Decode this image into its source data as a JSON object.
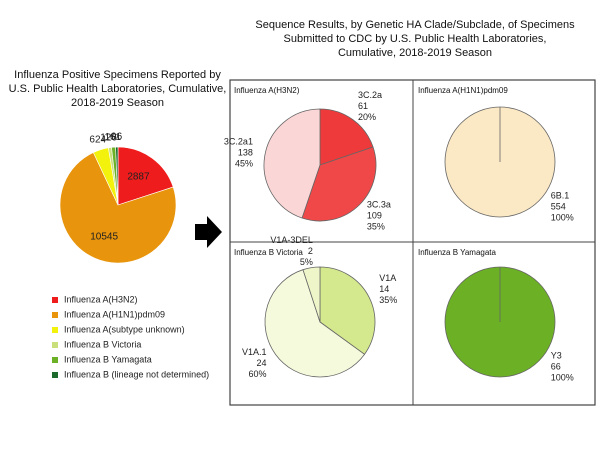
{
  "title": "Sequence Results, by Genetic HA Clade/Subclade, of Specimens Submitted to CDC by U.S. Public Health Laboratories, Cumulative, 2018-2019 Season",
  "chart_data": [
    {
      "type": "pie",
      "title": "Influenza Positive Specimens Reported by U.S. Public Health Laboratories, Cumulative, 2018-2019 Season",
      "categories": [
        "Influenza A(H3N2)",
        "Influenza A(H1N1)pdm09",
        "Influenza A(subtype unknown)",
        "Influenza B Victoria",
        "Influenza B Yamagata",
        "Influenza B (lineage not determined)"
      ],
      "values": [
        2887,
        10545,
        624,
        126,
        161,
        96
      ],
      "colors": [
        "#ee1c1c",
        "#e8940c",
        "#f2f20c",
        "#c8df7c",
        "#6cb025",
        "#1c6a2c"
      ],
      "legend": "bottom"
    },
    {
      "type": "pie",
      "title": "Influenza A(H3N2)",
      "categories": [
        "3C.2a",
        "3C.3a",
        "3C.2a1"
      ],
      "values": [
        61,
        109,
        138
      ],
      "percent_labels": [
        "20%",
        "35%",
        "45%"
      ],
      "colors": [
        "#ee3a3a",
        "#f04848",
        "#fbd6d6"
      ]
    },
    {
      "type": "pie",
      "title": "Influenza A(H1N1)pdm09",
      "categories": [
        "6B.1"
      ],
      "values": [
        554
      ],
      "percent_labels": [
        "100%"
      ],
      "colors": [
        "#fbe8c4"
      ]
    },
    {
      "type": "pie",
      "title": "Influenza B Victoria",
      "categories": [
        "V1A",
        "V1A.1",
        "V1A-3DEL"
      ],
      "values": [
        14,
        24,
        2
      ],
      "percent_labels": [
        "35%",
        "60%",
        "5%"
      ],
      "colors": [
        "#d4e88e",
        "#f6fadc",
        "#eef5c8"
      ]
    },
    {
      "type": "pie",
      "title": "Influenza B Yamagata",
      "categories": [
        "Y3"
      ],
      "values": [
        66
      ],
      "percent_labels": [
        "100%"
      ],
      "colors": [
        "#6cb025"
      ]
    }
  ]
}
